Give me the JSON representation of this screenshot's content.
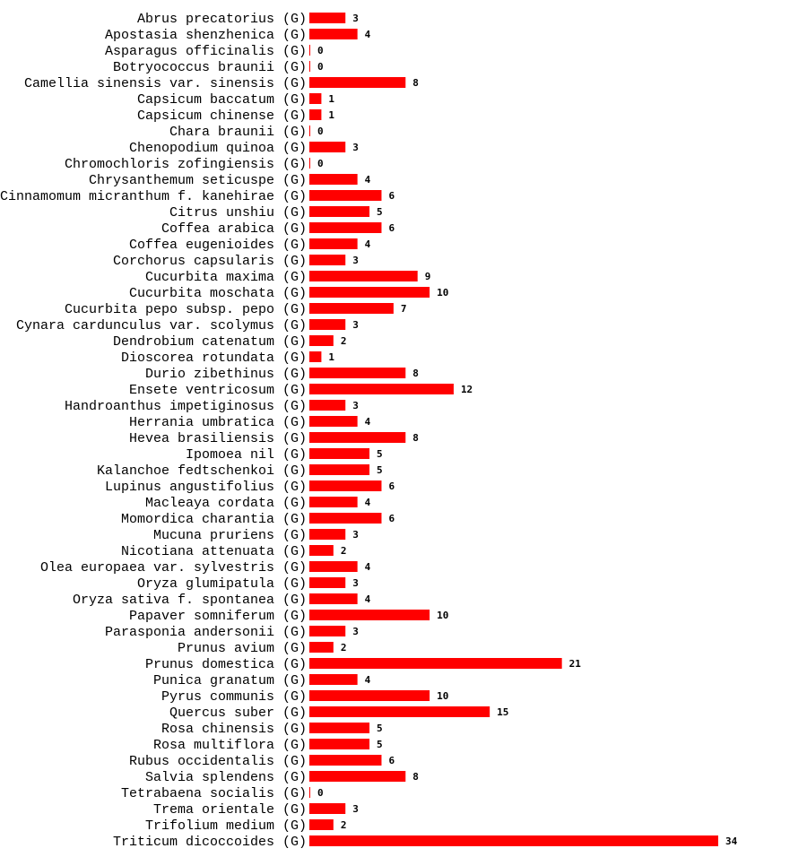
{
  "chart_data": {
    "type": "bar",
    "orientation": "horizontal",
    "bar_color": "#ff0000",
    "grid": false,
    "categories": [
      "Abrus precatorius (G)",
      "Apostasia shenzhenica (G)",
      "Asparagus officinalis (G)",
      "Botryococcus braunii (G)",
      "Camellia sinensis var. sinensis (G)",
      "Capsicum baccatum (G)",
      "Capsicum chinense (G)",
      "Chara braunii (G)",
      "Chenopodium quinoa (G)",
      "Chromochloris zofingiensis (G)",
      "Chrysanthemum seticuspe (G)",
      "Cinnamomum micranthum f. kanehirae (G)",
      "Citrus unshiu (G)",
      "Coffea arabica (G)",
      "Coffea eugenioides (G)",
      "Corchorus capsularis (G)",
      "Cucurbita maxima (G)",
      "Cucurbita moschata (G)",
      "Cucurbita pepo subsp. pepo (G)",
      "Cynara cardunculus var. scolymus (G)",
      "Dendrobium catenatum (G)",
      "Dioscorea rotundata (G)",
      "Durio zibethinus (G)",
      "Ensete ventricosum (G)",
      "Handroanthus impetiginosus (G)",
      "Herrania umbratica (G)",
      "Hevea brasiliensis (G)",
      "Ipomoea nil (G)",
      "Kalanchoe fedtschenkoi (G)",
      "Lupinus angustifolius (G)",
      "Macleaya cordata (G)",
      "Momordica charantia (G)",
      "Mucuna pruriens (G)",
      "Nicotiana attenuata (G)",
      "Olea europaea var. sylvestris (G)",
      "Oryza glumipatula (G)",
      "Oryza sativa f. spontanea (G)",
      "Papaver somniferum (G)",
      "Parasponia andersonii (G)",
      "Prunus avium (G)",
      "Prunus domestica (G)",
      "Punica granatum (G)",
      "Pyrus communis (G)",
      "Quercus suber (G)",
      "Rosa chinensis (G)",
      "Rosa multiflora (G)",
      "Rubus occidentalis (G)",
      "Salvia splendens (G)",
      "Tetrabaena socialis (G)",
      "Trema orientale (G)",
      "Trifolium medium (G)",
      "Triticum dicoccoides (G)"
    ],
    "values": [
      3,
      4,
      0,
      0,
      8,
      1,
      1,
      0,
      3,
      0,
      4,
      6,
      5,
      6,
      4,
      3,
      9,
      10,
      7,
      3,
      2,
      1,
      8,
      12,
      3,
      4,
      8,
      5,
      5,
      6,
      4,
      6,
      3,
      2,
      4,
      3,
      4,
      10,
      3,
      2,
      21,
      4,
      10,
      15,
      5,
      5,
      6,
      8,
      0,
      3,
      2,
      34
    ],
    "xlim": [
      0,
      34
    ]
  }
}
